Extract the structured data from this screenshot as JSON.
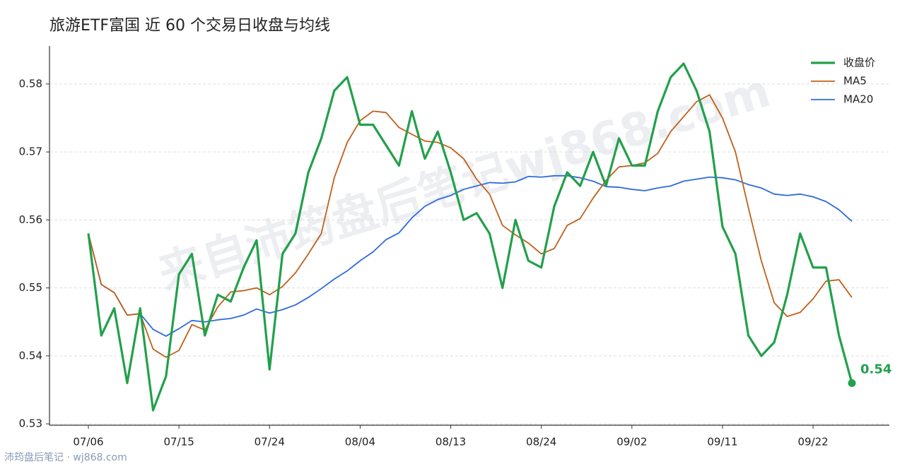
{
  "chart_data": {
    "type": "line",
    "title": "旅游ETF富国 近 60 个交易日收盘与均线",
    "categories": [
      "07/06",
      null,
      null,
      null,
      null,
      null,
      null,
      "07/15",
      null,
      null,
      null,
      null,
      null,
      null,
      "07/24",
      null,
      null,
      null,
      null,
      null,
      null,
      "08/04",
      null,
      null,
      null,
      null,
      null,
      null,
      "08/13",
      null,
      null,
      null,
      null,
      null,
      null,
      "08/24",
      null,
      null,
      null,
      null,
      null,
      null,
      "09/02",
      null,
      null,
      null,
      null,
      null,
      null,
      "09/11",
      null,
      null,
      null,
      null,
      null,
      null,
      "09/22",
      null,
      null,
      null
    ],
    "series": [
      {
        "name": "收盘价",
        "color": "#22a04b",
        "width": 3.2,
        "values": [
          0.558,
          0.543,
          0.547,
          0.536,
          0.547,
          0.532,
          0.537,
          0.552,
          0.555,
          0.543,
          0.549,
          0.548,
          0.553,
          0.557,
          0.538,
          0.555,
          0.558,
          0.567,
          0.572,
          0.579,
          0.581,
          0.574,
          0.574,
          0.571,
          0.568,
          0.576,
          0.569,
          0.573,
          0.567,
          0.56,
          0.561,
          0.558,
          0.55,
          0.56,
          0.554,
          0.553,
          0.562,
          0.567,
          0.565,
          0.57,
          0.565,
          0.572,
          0.568,
          0.568,
          0.576,
          0.581,
          0.583,
          0.579,
          0.573,
          0.559,
          0.555,
          0.543,
          0.54,
          0.542,
          0.549,
          0.558,
          0.553,
          0.553,
          0.543,
          0.536
        ]
      },
      {
        "name": "MA5",
        "color": "#c0601a",
        "width": 1.8,
        "values": [
          0.558,
          0.5505,
          0.5493,
          0.546,
          0.5462,
          0.541,
          0.5398,
          0.5408,
          0.5446,
          0.5438,
          0.5472,
          0.5494,
          0.5496,
          0.55,
          0.549,
          0.5502,
          0.5522,
          0.555,
          0.558,
          0.5662,
          0.5714,
          0.5746,
          0.576,
          0.5758,
          0.5736,
          0.5726,
          0.5716,
          0.5714,
          0.5706,
          0.569,
          0.566,
          0.5638,
          0.5592,
          0.5578,
          0.5566,
          0.555,
          0.5558,
          0.5592,
          0.5602,
          0.5632,
          0.5658,
          0.5678,
          0.568,
          0.5684,
          0.5698,
          0.573,
          0.5752,
          0.5774,
          0.5784,
          0.575,
          0.57,
          0.5618,
          0.554,
          0.5478,
          0.5458,
          0.5464,
          0.5484,
          0.551,
          0.5512,
          0.5486
        ]
      },
      {
        "name": "MA20",
        "color": "#2e6bdc",
        "width": 1.8,
        "values": [
          0.558,
          0.5505,
          0.5493,
          0.546,
          0.5462,
          0.5439,
          0.5429,
          0.544,
          0.5452,
          0.545,
          0.5453,
          0.5455,
          0.546,
          0.5469,
          0.5463,
          0.5468,
          0.5475,
          0.5486,
          0.5499,
          0.5513,
          0.5525,
          0.554,
          0.5553,
          0.5571,
          0.5581,
          0.5603,
          0.562,
          0.563,
          0.5636,
          0.5645,
          0.565,
          0.5655,
          0.5654,
          0.5656,
          0.5664,
          0.5663,
          0.5665,
          0.5665,
          0.5662,
          0.5657,
          0.5649,
          0.5648,
          0.5645,
          0.5643,
          0.5647,
          0.565,
          0.5657,
          0.566,
          0.5663,
          0.5662,
          0.5659,
          0.5652,
          0.5647,
          0.5638,
          0.5636,
          0.5638,
          0.5634,
          0.5627,
          0.5615,
          0.5598
        ]
      }
    ],
    "ylim": [
      0.5298,
      0.5856
    ],
    "yticks": [
      0.53,
      0.54,
      0.55,
      0.56,
      0.57,
      0.58
    ],
    "grid": true,
    "legend": "upper right",
    "annotation": "0.54",
    "watermark": "来自沛筠盘后笔记wj868.com",
    "source": "沛筠盘后笔记 · wj868.com"
  }
}
